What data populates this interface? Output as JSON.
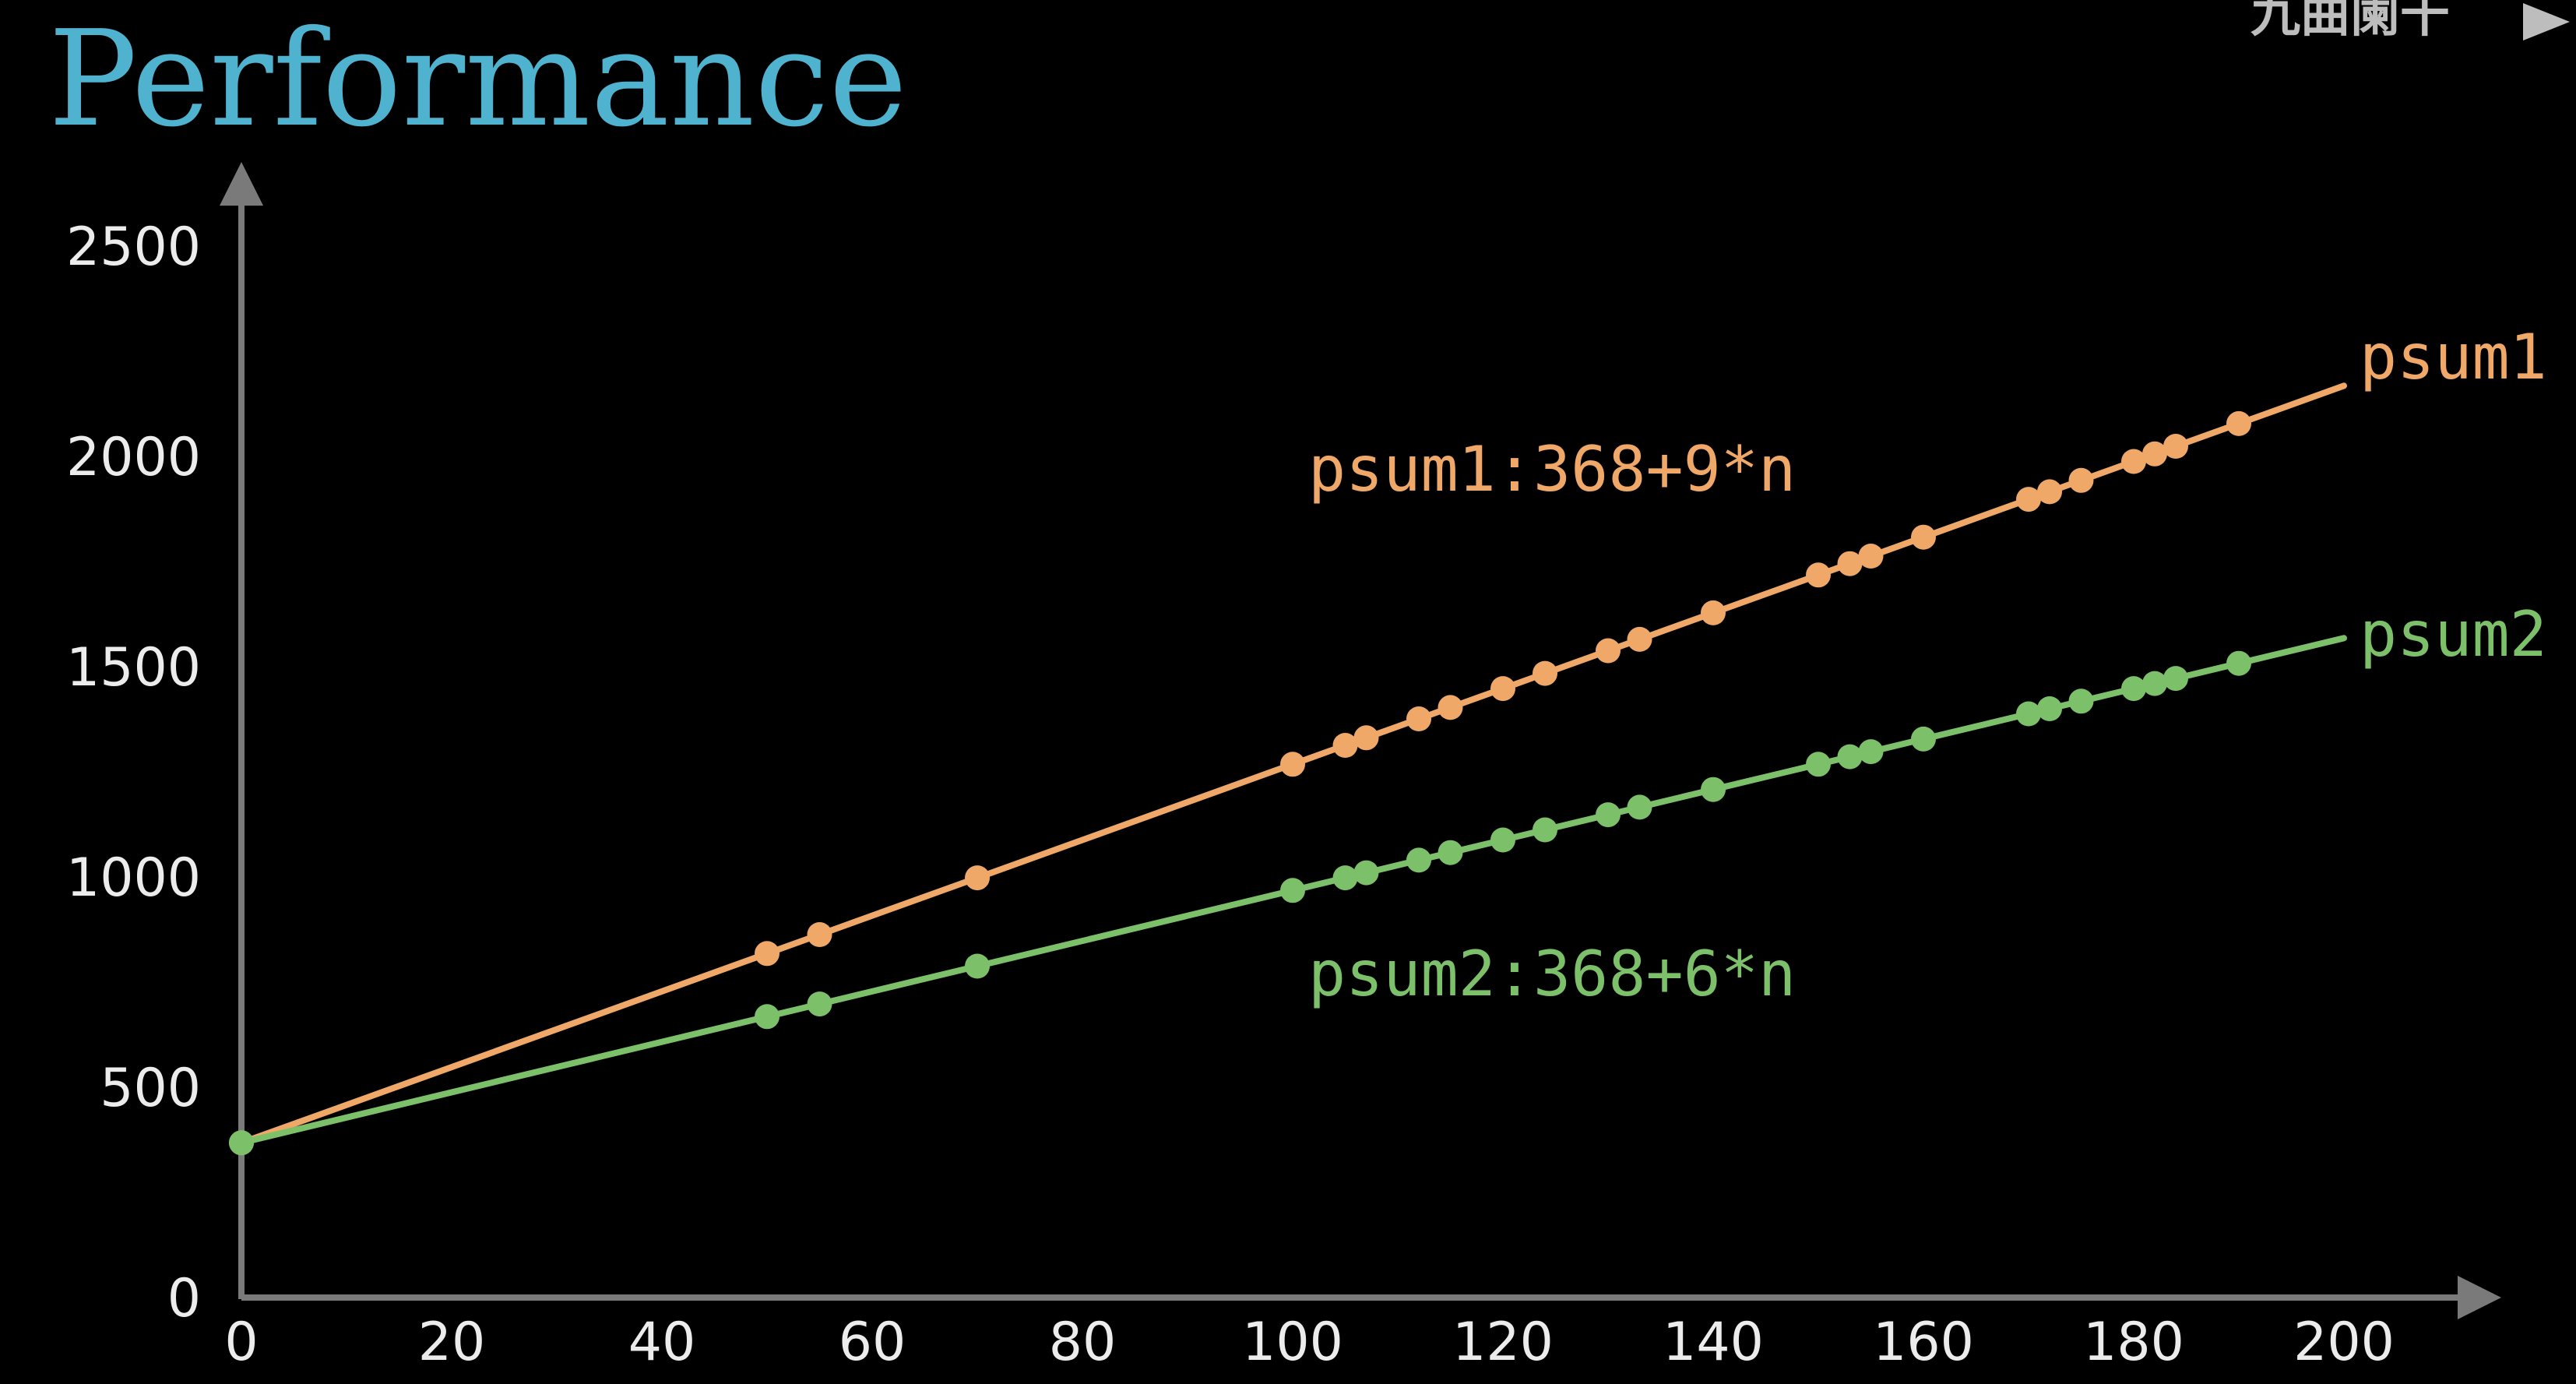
{
  "colors": {
    "background": "#000000",
    "title": "#4fb3cf",
    "axis": "#7a7a7a",
    "tick_label": "#ececec",
    "psum1": "#f0a868",
    "psum2": "#7cc06a"
  },
  "chart_data": {
    "type": "line",
    "title": "Performance",
    "xlabel": "",
    "ylabel": "",
    "xlim": [
      0,
      200
    ],
    "ylim": [
      0,
      2500
    ],
    "x_ticks": [
      0,
      20,
      40,
      60,
      80,
      100,
      120,
      140,
      160,
      180,
      200
    ],
    "y_ticks": [
      0,
      500,
      1000,
      1500,
      2000,
      2500
    ],
    "grid": false,
    "x": [
      0,
      50,
      55,
      70,
      100,
      105,
      107,
      112,
      115,
      120,
      124,
      130,
      133,
      140,
      150,
      153,
      155,
      160,
      170,
      172,
      175,
      180,
      182,
      184,
      190
    ],
    "series": [
      {
        "name": "psum1",
        "color": "#f0a868",
        "formula": "psum1:368+9*n",
        "values": [
          368,
          818,
          863,
          998,
          1268,
          1313,
          1331,
          1376,
          1403,
          1448,
          1484,
          1538,
          1565,
          1628,
          1718,
          1745,
          1763,
          1808,
          1898,
          1916,
          1943,
          1988,
          2006,
          2024,
          2078
        ],
        "line_end": [
          200,
          2168
        ]
      },
      {
        "name": "psum2",
        "color": "#7cc06a",
        "formula": "psum2:368+6*n",
        "values": [
          368,
          668,
          698,
          788,
          968,
          998,
          1010,
          1040,
          1058,
          1088,
          1112,
          1148,
          1166,
          1208,
          1268,
          1286,
          1298,
          1328,
          1388,
          1400,
          1418,
          1448,
          1460,
          1472,
          1508
        ],
        "line_end": [
          200,
          1568
        ]
      }
    ]
  },
  "watermark": "九曲阑干"
}
